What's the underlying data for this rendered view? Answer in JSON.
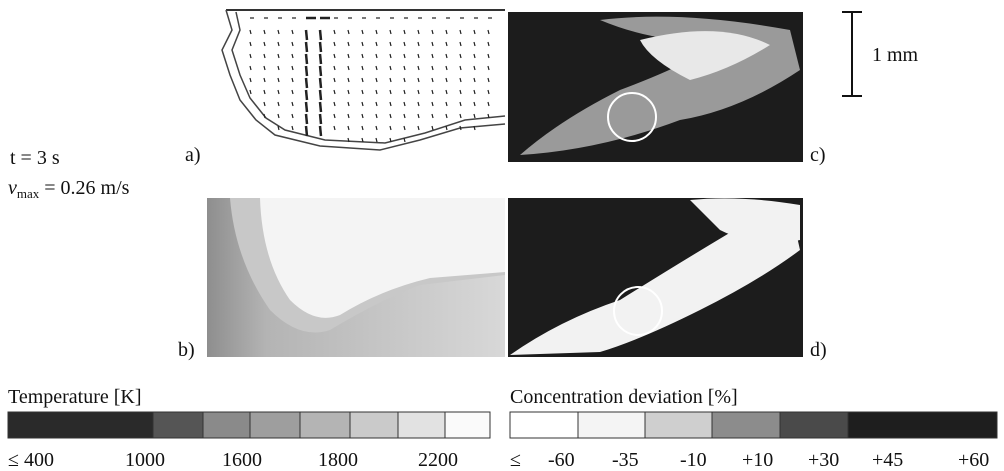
{
  "annotations": {
    "time": "t = 3 s",
    "vmax": {
      "symbol": "v",
      "subscript": "max",
      "rest": " = 0.26 m/s"
    },
    "scale_bar": "1 mm"
  },
  "panels": [
    {
      "label": "a)"
    },
    {
      "label": "b)"
    },
    {
      "label": "c)"
    },
    {
      "label": "d)"
    }
  ],
  "legends": [
    {
      "title": "Temperature [K]",
      "labels": [
        "≤ 400",
        "1000",
        "1600",
        "1800",
        "2200"
      ]
    },
    {
      "title": "Concentration deviation [%]",
      "labels": [
        "≤",
        "-60",
        "-35",
        "-10",
        "+10",
        "+30",
        "+45",
        "+60"
      ]
    }
  ]
}
